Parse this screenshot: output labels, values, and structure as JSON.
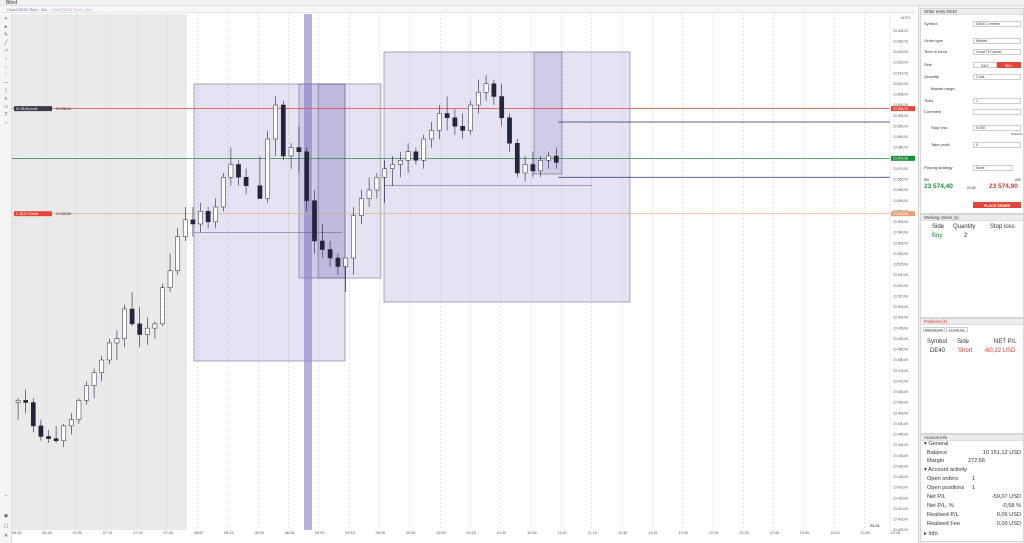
{
  "app": {
    "title": "Blind"
  },
  "tabs": [
    {
      "label": "Chart DE40 Time - 3m",
      "state": "active"
    },
    {
      "label": "Chart DE30 Time - 3m",
      "state": "inactive"
    }
  ],
  "chart_toolbar": {
    "label": "Timeframe"
  },
  "price_axis": {
    "mode": "AUTO",
    "ticks": [
      "23 635,00",
      "23 630,00",
      "23 625,00",
      "23 620,00",
      "23 615,00",
      "23 610,00",
      "23 605,00",
      "23 600,00",
      "23 595,00",
      "23 590,00",
      "23 585,00",
      "23 580,00",
      "23 575,00",
      "23 570,00",
      "23 565,00",
      "23 560,00",
      "23 555,00",
      "23 550,00",
      "23 545,00",
      "23 540,00",
      "23 535,00",
      "23 530,00",
      "23 525,00",
      "23 520,00",
      "23 515,00",
      "23 510,00",
      "23 505,00",
      "23 500,00",
      "23 495,00",
      "23 490,00",
      "23 485,00",
      "23 480,00",
      "23 475,00",
      "23 470,00",
      "23 465,00",
      "23 460,00",
      "23 455,00",
      "23 450,00",
      "23 445,00",
      "23 440,00",
      "23 435,00",
      "23 430,00",
      "23 425,00",
      "23 420,00",
      "23 415,00",
      "23 410,00",
      "23 405,00",
      "23 400,00"
    ],
    "markers": [
      {
        "label": "23 598,30",
        "color": "#e2463b"
      },
      {
        "label": "23 574,90",
        "color": "#1a8f3a"
      },
      {
        "label": "23 548,85",
        "color": "#e8a070"
      }
    ]
  },
  "time_axis": {
    "labels": [
      "06:30",
      "06:45",
      "07:00",
      "07:15",
      "07:30",
      "07:45",
      "08:00",
      "08:15",
      "08:30",
      "08:45",
      "09:00",
      "09:15",
      "09:30",
      "09:45",
      "10:00",
      "10:15",
      "10:30",
      "10:45",
      "11:00",
      "11:15",
      "11:30",
      "11:45",
      "12:00",
      "12:15",
      "12:30",
      "12:45",
      "13:00",
      "13:15",
      "13:30",
      "13:45"
    ],
    "clock": "03:41"
  },
  "order_lines": [
    {
      "tag": "SL",
      "text": "58,85 punkt",
      "price_label": "23 598,30"
    },
    {
      "tag": "L",
      "text": "-59,07 Punkte",
      "price_label": "23 548,85"
    }
  ],
  "order_entry": {
    "title": "Order entry DE40",
    "symbol_label": "Symbol",
    "symbol_value": "DE40 1 meters",
    "order_type_label": "Order type",
    "order_type_value": "Market",
    "tif_label": "Time in force",
    "tif_value": "Good Til Cancel",
    "side_label": "Side",
    "buy_label": "BUY",
    "sell_label": "SELL",
    "quantity_label": "Quantity",
    "quantity_value": "2 lots",
    "market_range_label": "Market range",
    "ticks_label": "Ticks",
    "ticks_value": "1",
    "comment_label": "Comment",
    "comment_value": "",
    "stop_loss_label": "Stop loss",
    "stop_loss_value": "5 000",
    "stop_loss_sub": "Distance",
    "take_profit_label": "Take profit",
    "take_profit_value": "0",
    "placing_strategy_label": "Placing strategy",
    "placing_strategy_value": "None",
    "bid_label": "BID",
    "ask_label": "ASK",
    "bid_price": "23 574,40",
    "spread": "00,50",
    "ask_price": "23 574,90",
    "place_order_label": "PLACE ORDER"
  },
  "working_orders": {
    "title": "Working orders (1)",
    "columns": [
      "Side",
      "Quantity",
      "Stop loss"
    ],
    "rows": [
      {
        "side": "Buy",
        "quantity": "2",
        "stop_loss": ""
      }
    ]
  },
  "positions": {
    "title": "Positions (1)",
    "btn_breakeven": "BREAKEVEN",
    "btn_close_all": "CLOSE ALL",
    "columns": [
      "Symbol",
      "Side",
      "NET P/L"
    ],
    "rows": [
      {
        "symbol": "DE40",
        "side": "Short",
        "net_pl": "-60,22 USD"
      }
    ]
  },
  "account_info": {
    "title": "Account info",
    "general_label": "General",
    "balance_label": "Balance",
    "balance_value": "10 151,12 USD",
    "margin_label": "Margin",
    "margin_value": "272,66",
    "activity_label": "Account activity",
    "open_orders_label": "Open orders",
    "open_orders_value": "1",
    "open_positions_label": "Open positions",
    "open_positions_value": "1",
    "net_pl_label": "Net P/L",
    "net_pl_value": "-59,07 USD",
    "net_pl_pct_label": "Net P/L, %",
    "net_pl_pct_value": "-0,58 %",
    "realised_pl_label": "Realised P/L",
    "realised_pl_value": "0,06 USD",
    "realised_fee_label": "Realised Fee",
    "realised_fee_value": "0,00 USD",
    "info_label": "Info"
  },
  "colors": {
    "up": "#ffffff",
    "down": "#24243a",
    "box": "#7c72c0",
    "sl_line": "#e2463b",
    "tp_line": "#2d8a4a",
    "blue_line": "#1b2f6e"
  },
  "chart_data": {
    "type": "candlestick",
    "interval": "3m",
    "symbol": "DE40",
    "ylim": [
      23400,
      23640
    ],
    "candles": [
      {
        "t": "06:30",
        "o": 23460,
        "h": 23462,
        "l": 23452,
        "c": 23461
      },
      {
        "t": "06:33",
        "o": 23461,
        "h": 23466,
        "l": 23455,
        "c": 23460
      },
      {
        "t": "06:36",
        "o": 23460,
        "h": 23462,
        "l": 23446,
        "c": 23449
      },
      {
        "t": "06:39",
        "o": 23449,
        "h": 23452,
        "l": 23442,
        "c": 23444
      },
      {
        "t": "06:42",
        "o": 23444,
        "h": 23447,
        "l": 23441,
        "c": 23443
      },
      {
        "t": "06:45",
        "o": 23443,
        "h": 23449,
        "l": 23441,
        "c": 23442
      },
      {
        "t": "06:48",
        "o": 23442,
        "h": 23450,
        "l": 23439,
        "c": 23449
      },
      {
        "t": "06:51",
        "o": 23449,
        "h": 23455,
        "l": 23445,
        "c": 23452
      },
      {
        "t": "06:54",
        "o": 23452,
        "h": 23462,
        "l": 23450,
        "c": 23461
      },
      {
        "t": "06:57",
        "o": 23461,
        "h": 23470,
        "l": 23459,
        "c": 23468
      },
      {
        "t": "07:00",
        "o": 23468,
        "h": 23476,
        "l": 23462,
        "c": 23474
      },
      {
        "t": "07:03",
        "o": 23474,
        "h": 23482,
        "l": 23470,
        "c": 23480
      },
      {
        "t": "07:06",
        "o": 23480,
        "h": 23490,
        "l": 23478,
        "c": 23488
      },
      {
        "t": "07:09",
        "o": 23488,
        "h": 23494,
        "l": 23480,
        "c": 23490
      },
      {
        "t": "07:12",
        "o": 23490,
        "h": 23506,
        "l": 23486,
        "c": 23504
      },
      {
        "t": "07:15",
        "o": 23504,
        "h": 23512,
        "l": 23496,
        "c": 23497
      },
      {
        "t": "07:18",
        "o": 23497,
        "h": 23505,
        "l": 23486,
        "c": 23492
      },
      {
        "t": "07:21",
        "o": 23492,
        "h": 23500,
        "l": 23487,
        "c": 23495
      },
      {
        "t": "07:24",
        "o": 23495,
        "h": 23498,
        "l": 23490,
        "c": 23497
      },
      {
        "t": "07:27",
        "o": 23497,
        "h": 23516,
        "l": 23496,
        "c": 23514
      },
      {
        "t": "07:30",
        "o": 23514,
        "h": 23530,
        "l": 23512,
        "c": 23522
      },
      {
        "t": "07:33",
        "o": 23522,
        "h": 23542,
        "l": 23520,
        "c": 23538
      },
      {
        "t": "07:36",
        "o": 23538,
        "h": 23552,
        "l": 23536,
        "c": 23546
      },
      {
        "t": "07:39",
        "o": 23546,
        "h": 23552,
        "l": 23538,
        "c": 23544
      },
      {
        "t": "07:42",
        "o": 23544,
        "h": 23554,
        "l": 23540,
        "c": 23550
      },
      {
        "t": "07:45",
        "o": 23550,
        "h": 23552,
        "l": 23542,
        "c": 23545
      },
      {
        "t": "07:48",
        "o": 23545,
        "h": 23556,
        "l": 23542,
        "c": 23552
      },
      {
        "t": "07:51",
        "o": 23552,
        "h": 23568,
        "l": 23550,
        "c": 23566
      },
      {
        "t": "07:54",
        "o": 23566,
        "h": 23580,
        "l": 23562,
        "c": 23572
      },
      {
        "t": "07:57",
        "o": 23572,
        "h": 23574,
        "l": 23562,
        "c": 23566
      },
      {
        "t": "08:00",
        "o": 23566,
        "h": 23570,
        "l": 23558,
        "c": 23562
      },
      {
        "t": "08:03",
        "o": 23562,
        "h": 23576,
        "l": 23556,
        "c": 23556
      },
      {
        "t": "08:06",
        "o": 23556,
        "h": 23588,
        "l": 23554,
        "c": 23584
      },
      {
        "t": "08:09",
        "o": 23584,
        "h": 23604,
        "l": 23576,
        "c": 23600
      },
      {
        "t": "08:12",
        "o": 23600,
        "h": 23602,
        "l": 23574,
        "c": 23576
      },
      {
        "t": "08:15",
        "o": 23576,
        "h": 23582,
        "l": 23570,
        "c": 23580
      },
      {
        "t": "08:18",
        "o": 23580,
        "h": 23590,
        "l": 23568,
        "c": 23578
      },
      {
        "t": "08:21",
        "o": 23578,
        "h": 23580,
        "l": 23550,
        "c": 23555
      },
      {
        "t": "08:24",
        "o": 23555,
        "h": 23560,
        "l": 23530,
        "c": 23536
      },
      {
        "t": "08:27",
        "o": 23536,
        "h": 23544,
        "l": 23528,
        "c": 23532
      },
      {
        "t": "08:30",
        "o": 23532,
        "h": 23536,
        "l": 23524,
        "c": 23528
      },
      {
        "t": "08:33",
        "o": 23528,
        "h": 23530,
        "l": 23520,
        "c": 23524
      },
      {
        "t": "08:36",
        "o": 23524,
        "h": 23528,
        "l": 23512,
        "c": 23528
      },
      {
        "t": "08:39",
        "o": 23528,
        "h": 23552,
        "l": 23520,
        "c": 23548
      },
      {
        "t": "08:42",
        "o": 23548,
        "h": 23560,
        "l": 23544,
        "c": 23556
      },
      {
        "t": "08:45",
        "o": 23556,
        "h": 23566,
        "l": 23552,
        "c": 23560
      },
      {
        "t": "08:48",
        "o": 23560,
        "h": 23568,
        "l": 23556,
        "c": 23566
      },
      {
        "t": "08:51",
        "o": 23566,
        "h": 23574,
        "l": 23554,
        "c": 23570
      },
      {
        "t": "08:54",
        "o": 23570,
        "h": 23576,
        "l": 23562,
        "c": 23572
      },
      {
        "t": "08:57",
        "o": 23572,
        "h": 23578,
        "l": 23566,
        "c": 23574
      },
      {
        "t": "09:00",
        "o": 23574,
        "h": 23582,
        "l": 23568,
        "c": 23578
      },
      {
        "t": "09:03",
        "o": 23578,
        "h": 23580,
        "l": 23572,
        "c": 23574
      },
      {
        "t": "09:06",
        "o": 23574,
        "h": 23586,
        "l": 23570,
        "c": 23584
      },
      {
        "t": "09:09",
        "o": 23584,
        "h": 23592,
        "l": 23580,
        "c": 23588
      },
      {
        "t": "09:12",
        "o": 23588,
        "h": 23600,
        "l": 23584,
        "c": 23596
      },
      {
        "t": "09:15",
        "o": 23596,
        "h": 23604,
        "l": 23588,
        "c": 23594
      },
      {
        "t": "09:18",
        "o": 23594,
        "h": 23598,
        "l": 23586,
        "c": 23590
      },
      {
        "t": "09:21",
        "o": 23590,
        "h": 23596,
        "l": 23584,
        "c": 23588
      },
      {
        "t": "09:24",
        "o": 23588,
        "h": 23602,
        "l": 23586,
        "c": 23600
      },
      {
        "t": "09:27",
        "o": 23600,
        "h": 23612,
        "l": 23596,
        "c": 23606
      },
      {
        "t": "09:30",
        "o": 23606,
        "h": 23614,
        "l": 23602,
        "c": 23610
      },
      {
        "t": "09:33",
        "o": 23610,
        "h": 23612,
        "l": 23600,
        "c": 23604
      },
      {
        "t": "09:36",
        "o": 23604,
        "h": 23610,
        "l": 23590,
        "c": 23594
      },
      {
        "t": "09:39",
        "o": 23594,
        "h": 23596,
        "l": 23578,
        "c": 23582
      },
      {
        "t": "09:42",
        "o": 23582,
        "h": 23584,
        "l": 23566,
        "c": 23568
      },
      {
        "t": "09:45",
        "o": 23568,
        "h": 23576,
        "l": 23564,
        "c": 23572
      },
      {
        "t": "09:48",
        "o": 23572,
        "h": 23578,
        "l": 23566,
        "c": 23569
      },
      {
        "t": "09:51",
        "o": 23569,
        "h": 23576,
        "l": 23566,
        "c": 23574
      },
      {
        "t": "09:54",
        "o": 23574,
        "h": 23578,
        "l": 23570,
        "c": 23576
      },
      {
        "t": "09:57",
        "o": 23576,
        "h": 23580,
        "l": 23570,
        "c": 23573
      }
    ],
    "price_lines": [
      {
        "name": "stop-loss-order",
        "value": 23598.3
      },
      {
        "name": "current-price",
        "value": 23574.9
      },
      {
        "name": "position-entry",
        "value": 23548.85
      }
    ]
  }
}
